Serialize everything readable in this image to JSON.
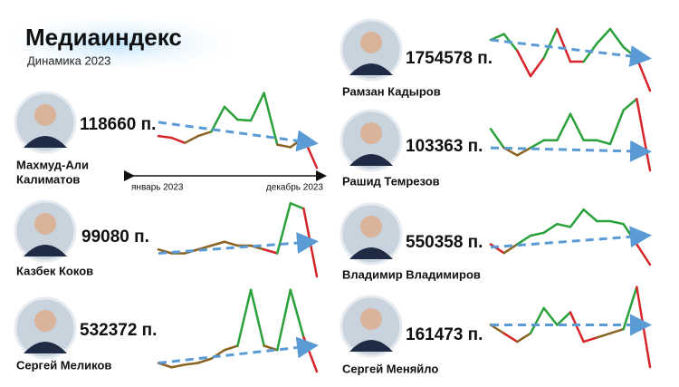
{
  "header": {
    "title": "Медиаиндекс",
    "subtitle": "Динамика 2023"
  },
  "axis": {
    "start": "январь 2023",
    "end": "декабрь 2023"
  },
  "colors": {
    "up": "#2aa13b",
    "down": "#d7262b",
    "flat": "#8a6424",
    "trend": "#5b9bd5"
  },
  "people": [
    {
      "name": [
        "Махмуд-Али",
        "Калиматов"
      ],
      "score": "118660 п.",
      "values": [
        42,
        40,
        34,
        42,
        47,
        76,
        61,
        60,
        92,
        32,
        29,
        40,
        5
      ],
      "trend": [
        58,
        34
      ]
    },
    {
      "name": [
        "Казбек Коков"
      ],
      "score": "99080 п.",
      "values": [
        35,
        30,
        30,
        35,
        40,
        45,
        40,
        40,
        35,
        30,
        95,
        88,
        0
      ],
      "trend": [
        30,
        45
      ]
    },
    {
      "name": [
        "Сергей Меликов"
      ],
      "score": "532372 п.",
      "values": [
        10,
        5,
        8,
        10,
        15,
        25,
        30,
        95,
        30,
        25,
        95,
        40,
        0
      ],
      "trend": [
        10,
        30
      ]
    },
    {
      "name": [
        "Рамзан Кадыров"
      ],
      "score": "1754578 п.",
      "values": [
        70,
        78,
        55,
        20,
        45,
        85,
        40,
        40,
        65,
        85,
        60,
        45,
        0
      ],
      "trend": [
        70,
        45
      ]
    },
    {
      "name": [
        "Рашид Темрезов"
      ],
      "score": "103363 п.",
      "values": [
        55,
        30,
        20,
        30,
        40,
        40,
        75,
        40,
        40,
        35,
        80,
        95,
        0
      ],
      "trend": [
        30,
        25
      ]
    },
    {
      "name": [
        "Владимир Владимиров"
      ],
      "score": "550358 п.",
      "values": [
        35,
        20,
        35,
        50,
        55,
        70,
        65,
        95,
        75,
        75,
        70,
        35,
        0
      ],
      "trend": [
        30,
        50
      ]
    },
    {
      "name": [
        "Сергей Меняйло"
      ],
      "score": "161473 п.",
      "values": [
        50,
        40,
        30,
        40,
        70,
        50,
        65,
        30,
        35,
        40,
        45,
        95,
        0
      ],
      "trend": [
        50,
        50
      ]
    }
  ]
}
